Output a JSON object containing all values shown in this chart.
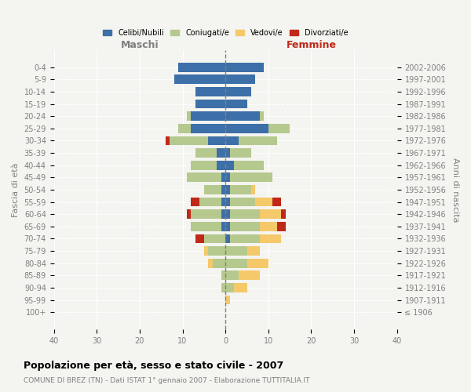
{
  "age_groups": [
    "100+",
    "95-99",
    "90-94",
    "85-89",
    "80-84",
    "75-79",
    "70-74",
    "65-69",
    "60-64",
    "55-59",
    "50-54",
    "45-49",
    "40-44",
    "35-39",
    "30-34",
    "25-29",
    "20-24",
    "15-19",
    "10-14",
    "5-9",
    "0-4"
  ],
  "years": [
    "≤ 1906",
    "1907-1911",
    "1912-1916",
    "1917-1921",
    "1922-1926",
    "1927-1931",
    "1932-1936",
    "1937-1941",
    "1942-1946",
    "1947-1951",
    "1952-1956",
    "1957-1961",
    "1962-1966",
    "1967-1971",
    "1972-1976",
    "1977-1981",
    "1982-1986",
    "1987-1991",
    "1992-1996",
    "1997-2001",
    "2002-2006"
  ],
  "colors": {
    "celibe": "#3d6fa8",
    "coniugato": "#b5c98e",
    "vedovo": "#f5c96a",
    "divorziato": "#c0281a"
  },
  "male": {
    "celibe": [
      0,
      0,
      0,
      0,
      0,
      0,
      0,
      1,
      1,
      1,
      1,
      1,
      2,
      2,
      4,
      8,
      8,
      7,
      7,
      12,
      11
    ],
    "coniugato": [
      0,
      0,
      1,
      1,
      3,
      4,
      5,
      7,
      7,
      5,
      4,
      8,
      6,
      5,
      9,
      3,
      1,
      0,
      0,
      0,
      0
    ],
    "vedovo": [
      0,
      0,
      0,
      0,
      1,
      1,
      0,
      0,
      0,
      0,
      0,
      0,
      0,
      0,
      0,
      0,
      0,
      0,
      0,
      0,
      0
    ],
    "divorziato": [
      0,
      0,
      0,
      0,
      0,
      0,
      2,
      0,
      1,
      2,
      0,
      0,
      0,
      0,
      1,
      0,
      0,
      0,
      0,
      0,
      0
    ]
  },
  "female": {
    "celibe": [
      0,
      0,
      0,
      0,
      0,
      0,
      1,
      1,
      1,
      1,
      1,
      1,
      2,
      1,
      3,
      10,
      8,
      5,
      6,
      7,
      9
    ],
    "coniugato": [
      0,
      0,
      2,
      3,
      5,
      5,
      7,
      7,
      7,
      6,
      5,
      10,
      7,
      5,
      9,
      5,
      1,
      0,
      0,
      0,
      0
    ],
    "vedovo": [
      0,
      1,
      3,
      5,
      5,
      3,
      5,
      4,
      5,
      4,
      1,
      0,
      0,
      0,
      0,
      0,
      0,
      0,
      0,
      0,
      0
    ],
    "divorziato": [
      0,
      0,
      0,
      0,
      0,
      0,
      0,
      2,
      1,
      2,
      0,
      0,
      0,
      0,
      0,
      0,
      0,
      0,
      0,
      0,
      0
    ]
  },
  "title_main": "Popolazione per età, sesso e stato civile - 2007",
  "title_sub": "COMUNE DI BREZ (TN) - Dati ISTAT 1° gennaio 2007 - Elaborazione TUTTITALIA.IT",
  "xlabel_left": "Maschi",
  "xlabel_right": "Femmine",
  "ylabel_left": "Fascia di età",
  "ylabel_right": "Anni di nascita",
  "xlim": 40,
  "xticks": [
    -40,
    -30,
    -20,
    -10,
    0,
    10,
    20,
    30,
    40
  ],
  "xtick_labels": [
    "40",
    "30",
    "20",
    "10",
    "0",
    "10",
    "20",
    "30",
    "40"
  ],
  "bg_color": "#f4f4f0"
}
